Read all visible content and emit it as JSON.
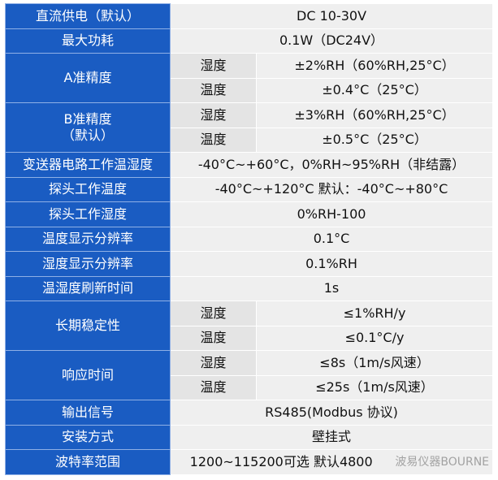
{
  "rows": [
    {
      "label": "直流供电（默认）",
      "value": "DC 10-30V"
    },
    {
      "label": "最大功耗",
      "value": "0.1W（DC24V）"
    },
    {
      "label": "A准精度",
      "sub": [
        {
          "k": "湿度",
          "v": "±2%RH（60%RH,25°C）"
        },
        {
          "k": "温度",
          "v": "±0.4°C（25°C）"
        }
      ]
    },
    {
      "label": "B准精度\n（默认）",
      "sub": [
        {
          "k": "湿度",
          "v": "±3%RH（60%RH,25°C）"
        },
        {
          "k": "温度",
          "v": "±0.5°C（25°C）"
        }
      ]
    },
    {
      "label": "变送器电路工作温湿度",
      "value": "-40°C~+60°C，0%RH~95%RH（非结露）"
    },
    {
      "label": "探头工作温度",
      "value": "-40°C~+120°C  默认：-40°C~+80°C"
    },
    {
      "label": "探头工作湿度",
      "value": "0%RH-100"
    },
    {
      "label": "温度显示分辨率",
      "value": "0.1°C"
    },
    {
      "label": "湿度显示分辨率",
      "value": "0.1%RH"
    },
    {
      "label": "温湿度刷新时间",
      "value": "1s"
    },
    {
      "label": "长期稳定性",
      "sub": [
        {
          "k": "湿度",
          "v": "≤1%RH/y"
        },
        {
          "k": "温度",
          "v": "≤0.1°C/y"
        }
      ]
    },
    {
      "label": "响应时间",
      "sub": [
        {
          "k": "湿度",
          "v": "≤8s（1m/s风速）"
        },
        {
          "k": "温度",
          "v": "≤25s（1m/s风速）"
        }
      ]
    },
    {
      "label": "输出信号",
      "value": "RS485(Modbus 协议)"
    },
    {
      "label": "安装方式",
      "value": "壁挂式"
    },
    {
      "label": "波特率范围",
      "value": "1200~115200可选 默认4800"
    }
  ],
  "watermark": "波易仪器BOURNE",
  "colors": {
    "label_bg": "#1a5cc2",
    "cell_bg": "#efefef"
  }
}
